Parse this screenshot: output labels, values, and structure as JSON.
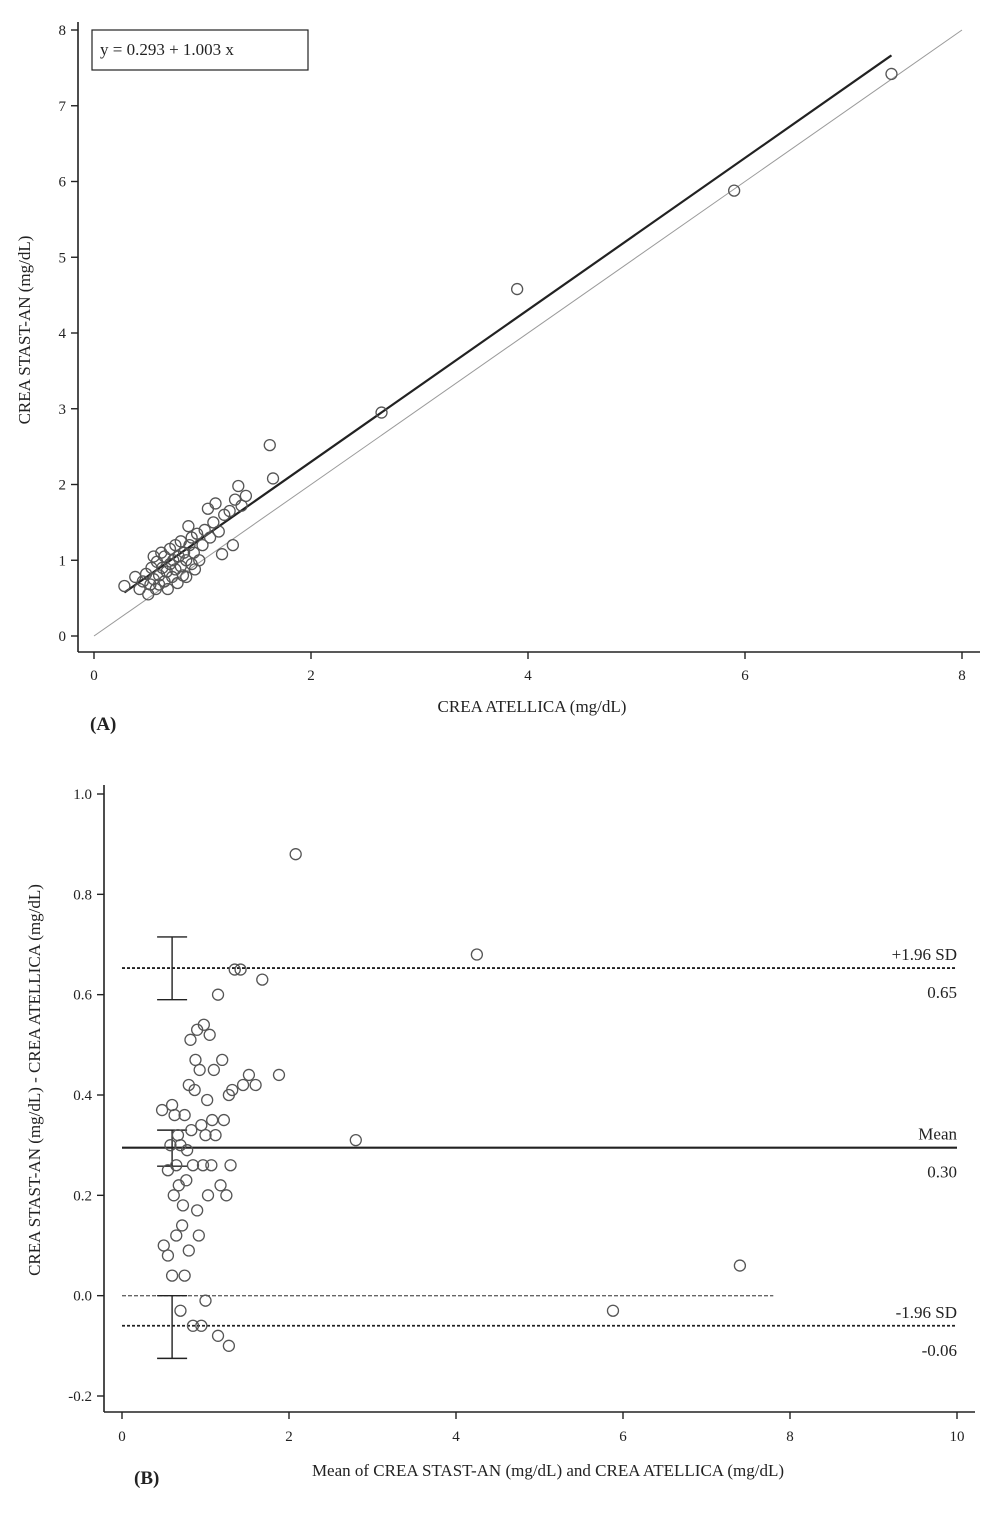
{
  "chart_data": [
    {
      "type": "scatter",
      "panel_label": "(A)",
      "xlabel": "CREA ATELLICA (mg/dL)",
      "ylabel": "CREA STAST-AN (mg/dL)",
      "xlim": [
        0,
        8
      ],
      "ylim": [
        0,
        8
      ],
      "xticks": [
        0,
        2,
        4,
        6,
        8
      ],
      "yticks": [
        0,
        1,
        2,
        3,
        4,
        5,
        6,
        7,
        8
      ],
      "equation": "y = 0.293 + 1.003 x",
      "regression": {
        "intercept": 0.293,
        "slope": 1.003,
        "x_range": [
          0.28,
          7.35
        ]
      },
      "identity_line": true,
      "points": [
        [
          0.28,
          0.66
        ],
        [
          0.38,
          0.78
        ],
        [
          0.42,
          0.62
        ],
        [
          0.45,
          0.72
        ],
        [
          0.48,
          0.82
        ],
        [
          0.5,
          0.55
        ],
        [
          0.52,
          0.68
        ],
        [
          0.53,
          0.9
        ],
        [
          0.55,
          1.05
        ],
        [
          0.55,
          0.75
        ],
        [
          0.57,
          0.62
        ],
        [
          0.58,
          0.98
        ],
        [
          0.6,
          0.8
        ],
        [
          0.6,
          0.68
        ],
        [
          0.62,
          1.1
        ],
        [
          0.63,
          0.9
        ],
        [
          0.65,
          0.72
        ],
        [
          0.65,
          1.05
        ],
        [
          0.67,
          0.85
        ],
        [
          0.68,
          0.62
        ],
        [
          0.7,
          0.95
        ],
        [
          0.7,
          1.15
        ],
        [
          0.72,
          0.78
        ],
        [
          0.73,
          1.0
        ],
        [
          0.75,
          0.88
        ],
        [
          0.75,
          1.2
        ],
        [
          0.77,
          0.7
        ],
        [
          0.78,
          1.05
        ],
        [
          0.8,
          0.92
        ],
        [
          0.8,
          1.25
        ],
        [
          0.82,
          0.8
        ],
        [
          0.83,
          1.1
        ],
        [
          0.85,
          1.0
        ],
        [
          0.85,
          0.78
        ],
        [
          0.87,
          1.45
        ],
        [
          0.88,
          1.2
        ],
        [
          0.9,
          0.95
        ],
        [
          0.9,
          1.3
        ],
        [
          0.92,
          1.1
        ],
        [
          0.93,
          0.88
        ],
        [
          0.95,
          1.35
        ],
        [
          0.97,
          1.0
        ],
        [
          1.0,
          1.2
        ],
        [
          1.02,
          1.4
        ],
        [
          1.05,
          1.68
        ],
        [
          1.07,
          1.3
        ],
        [
          1.1,
          1.5
        ],
        [
          1.12,
          1.75
        ],
        [
          1.15,
          1.38
        ],
        [
          1.18,
          1.08
        ],
        [
          1.2,
          1.6
        ],
        [
          1.25,
          1.65
        ],
        [
          1.28,
          1.2
        ],
        [
          1.3,
          1.8
        ],
        [
          1.33,
          1.98
        ],
        [
          1.36,
          1.72
        ],
        [
          1.4,
          1.85
        ],
        [
          1.62,
          2.52
        ],
        [
          1.65,
          2.08
        ],
        [
          2.65,
          2.95
        ],
        [
          3.9,
          4.58
        ],
        [
          5.9,
          5.88
        ],
        [
          7.35,
          7.42
        ]
      ]
    },
    {
      "type": "scatter",
      "panel_label": "(B)",
      "xlabel": "Mean of CREA STAST-AN (mg/dL) and CREA ATELLICA (mg/dL)",
      "ylabel": "CREA STAST-AN (mg/dL) - CREA ATELLICA (mg/dL)",
      "xlim": [
        0,
        10
      ],
      "ylim": [
        -0.2,
        1.0
      ],
      "xticks": [
        0,
        2,
        4,
        6,
        8,
        10
      ],
      "yticks": [
        "-0.2",
        "0.0",
        "0.2",
        "0.4",
        "0.6",
        "0.8",
        "1.0"
      ],
      "lines": {
        "upper": {
          "label": "+1.96 SD",
          "value_label": "0.65",
          "y": 0.653,
          "ci": [
            0.59,
            0.715
          ]
        },
        "mean": {
          "label": "Mean",
          "value_label": "0.30",
          "y": 0.295,
          "ci": [
            0.258,
            0.33
          ]
        },
        "lower": {
          "label": "-1.96 SD",
          "value_label": "-0.06",
          "y": -0.06,
          "ci": [
            -0.125,
            0.0
          ]
        },
        "zero": {
          "y": 0.0,
          "x_end": 7.8
        }
      },
      "points": [
        [
          0.48,
          0.37
        ],
        [
          0.5,
          0.1
        ],
        [
          0.55,
          0.08
        ],
        [
          0.55,
          0.25
        ],
        [
          0.58,
          0.3
        ],
        [
          0.6,
          0.38
        ],
        [
          0.6,
          0.04
        ],
        [
          0.62,
          0.2
        ],
        [
          0.63,
          0.36
        ],
        [
          0.65,
          0.26
        ],
        [
          0.65,
          0.12
        ],
        [
          0.67,
          0.32
        ],
        [
          0.68,
          0.22
        ],
        [
          0.7,
          -0.03
        ],
        [
          0.7,
          0.3
        ],
        [
          0.72,
          0.14
        ],
        [
          0.73,
          0.18
        ],
        [
          0.75,
          0.04
        ],
        [
          0.75,
          0.36
        ],
        [
          0.77,
          0.23
        ],
        [
          0.78,
          0.29
        ],
        [
          0.8,
          0.42
        ],
        [
          0.8,
          0.09
        ],
        [
          0.82,
          0.51
        ],
        [
          0.83,
          0.33
        ],
        [
          0.85,
          -0.06
        ],
        [
          0.85,
          0.26
        ],
        [
          0.87,
          0.41
        ],
        [
          0.88,
          0.47
        ],
        [
          0.9,
          0.17
        ],
        [
          0.9,
          0.53
        ],
        [
          0.92,
          0.12
        ],
        [
          0.93,
          0.45
        ],
        [
          0.95,
          0.34
        ],
        [
          0.95,
          -0.06
        ],
        [
          0.97,
          0.26
        ],
        [
          0.98,
          0.54
        ],
        [
          1.0,
          0.32
        ],
        [
          1.0,
          -0.01
        ],
        [
          1.02,
          0.39
        ],
        [
          1.03,
          0.2
        ],
        [
          1.05,
          0.52
        ],
        [
          1.07,
          0.26
        ],
        [
          1.08,
          0.35
        ],
        [
          1.1,
          0.45
        ],
        [
          1.12,
          0.32
        ],
        [
          1.15,
          -0.08
        ],
        [
          1.15,
          0.6
        ],
        [
          1.18,
          0.22
        ],
        [
          1.2,
          0.47
        ],
        [
          1.22,
          0.35
        ],
        [
          1.25,
          0.2
        ],
        [
          1.28,
          0.4
        ],
        [
          1.28,
          -0.1
        ],
        [
          1.3,
          0.26
        ],
        [
          1.32,
          0.41
        ],
        [
          1.35,
          0.65
        ],
        [
          1.42,
          0.65
        ],
        [
          1.45,
          0.42
        ],
        [
          1.52,
          0.44
        ],
        [
          1.6,
          0.42
        ],
        [
          1.68,
          0.63
        ],
        [
          1.88,
          0.44
        ],
        [
          2.08,
          0.88
        ],
        [
          2.8,
          0.31
        ],
        [
          4.25,
          0.68
        ],
        [
          5.88,
          -0.03
        ],
        [
          7.4,
          0.06
        ]
      ]
    }
  ]
}
